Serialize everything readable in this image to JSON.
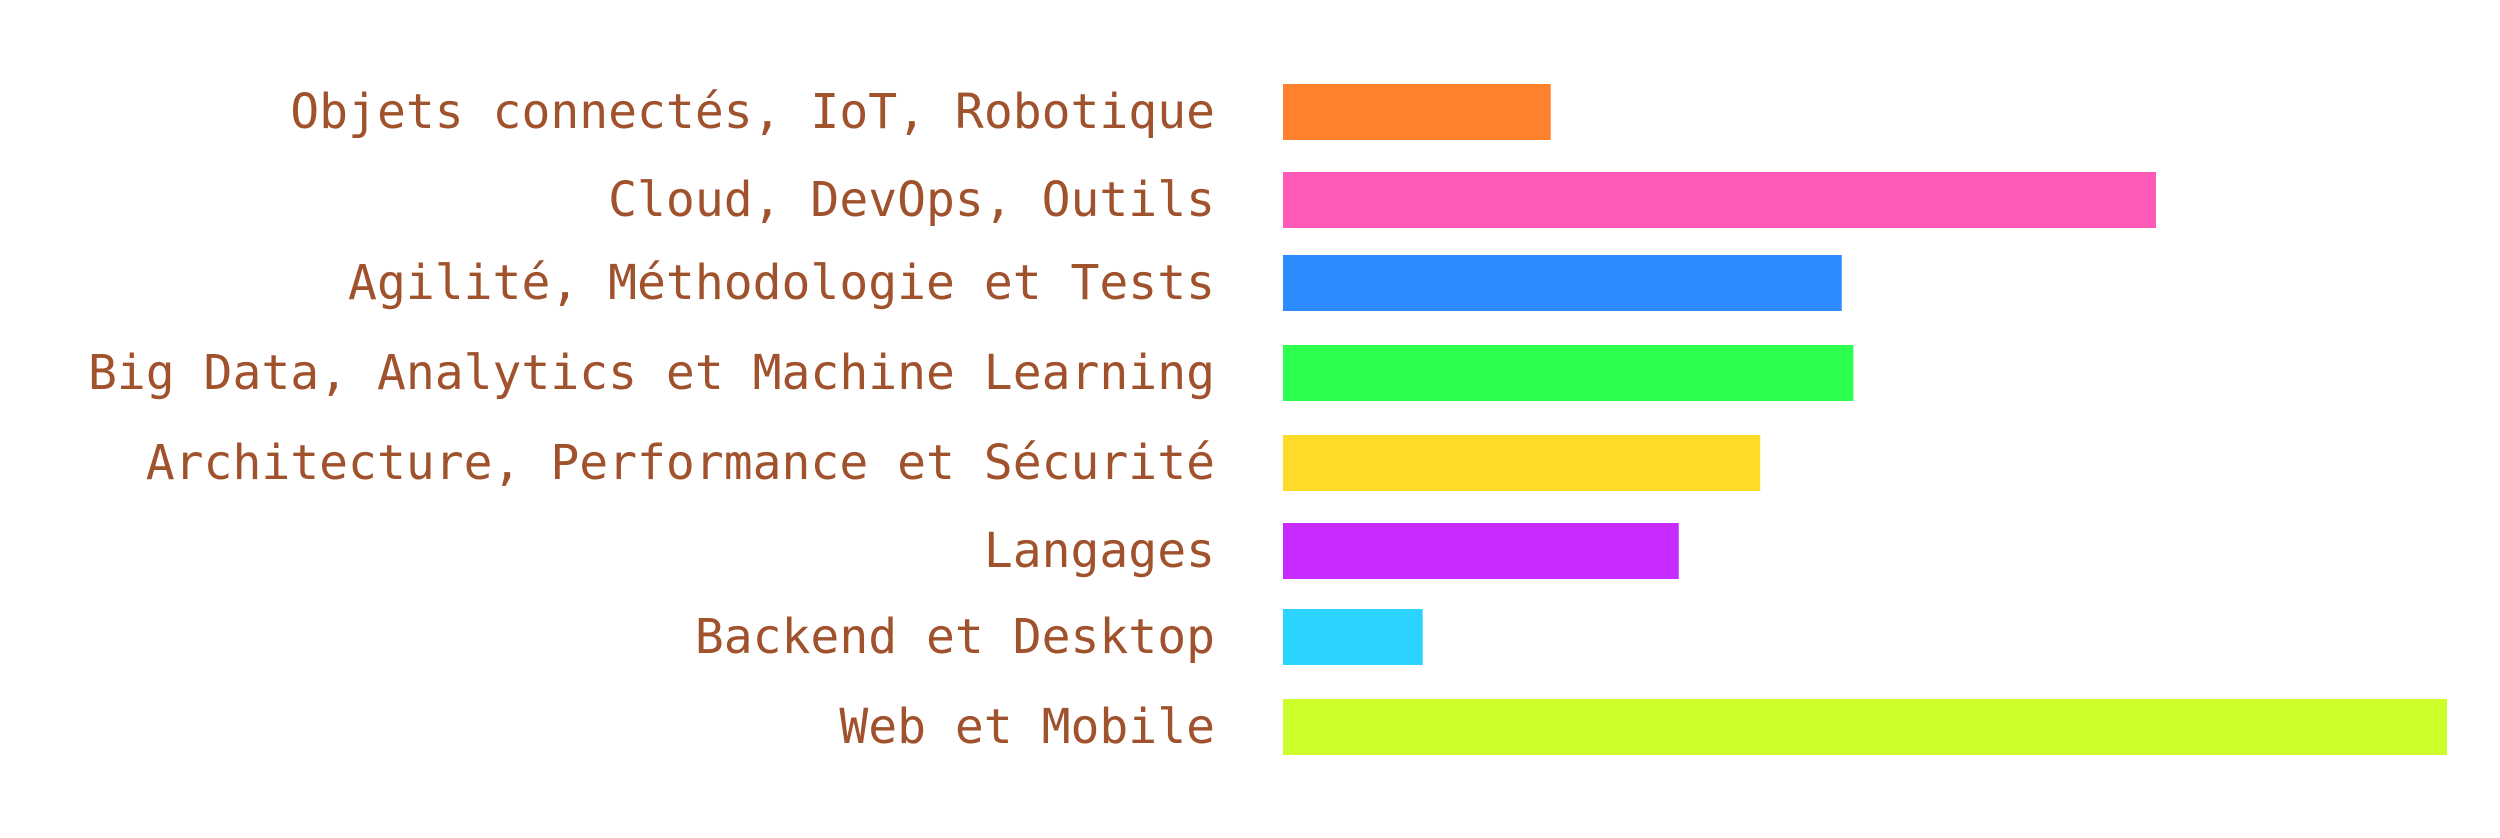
{
  "chart_data": {
    "type": "bar",
    "orientation": "horizontal",
    "title": "",
    "xlabel": "",
    "ylabel": "",
    "label_color": "#A0522D",
    "grid": false,
    "legend": "none",
    "xlim": [
      0,
      100
    ],
    "categories": [
      "Objets connectés, IoT, Robotique",
      "Cloud, DevOps, Outils",
      "Agilité, Méthodologie et Tests",
      "Big Data, Analytics et Machine Learning",
      "Architecture, Performance et Sécurité",
      "Langages",
      "Backend et Desktop",
      "Web et Mobile"
    ],
    "values": [
      23,
      75,
      48,
      49,
      41,
      34,
      12,
      100
    ],
    "colors": [
      "#FF812D",
      "#FF5AB7",
      "#2B8BFF",
      "#2DFF4E",
      "#FFDC2A",
      "#C82BFF",
      "#2AD4FF",
      "#CCFF2A"
    ]
  }
}
